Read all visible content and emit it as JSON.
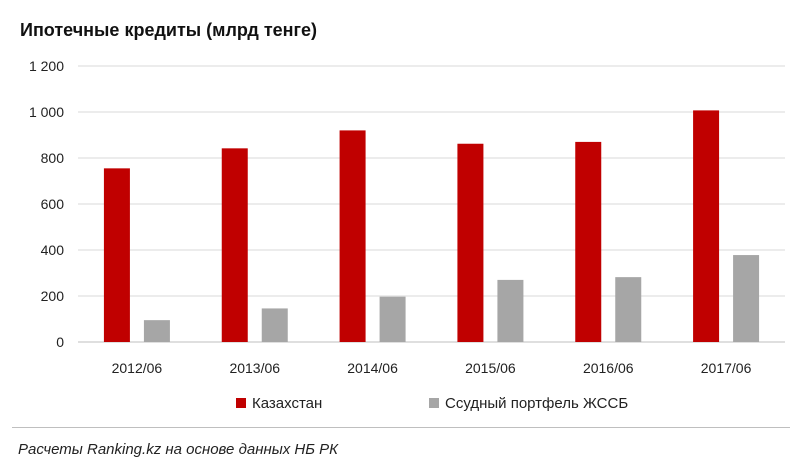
{
  "chart_data": {
    "type": "bar",
    "title": "Ипотечные кредиты (млрд тенге)",
    "categories": [
      "2012/06",
      "2013/06",
      "2014/06",
      "2015/06",
      "2016/06",
      "2017/06"
    ],
    "series": [
      {
        "name": "Казахстан",
        "values": [
          755,
          842,
          920,
          862,
          870,
          1007
        ],
        "color": "#c00000"
      },
      {
        "name": "Ссудный портфель ЖССБ",
        "values": [
          95,
          146,
          197,
          270,
          282,
          378
        ],
        "color": "#a6a6a6"
      }
    ],
    "yticks": [
      "0",
      "200",
      "400",
      "600",
      "800",
      "1 000",
      "1 200"
    ],
    "ylim": [
      0,
      1200
    ],
    "grid": true,
    "legend": "bottom"
  },
  "source": "Расчеты Ranking.kz на основе данных НБ РК"
}
